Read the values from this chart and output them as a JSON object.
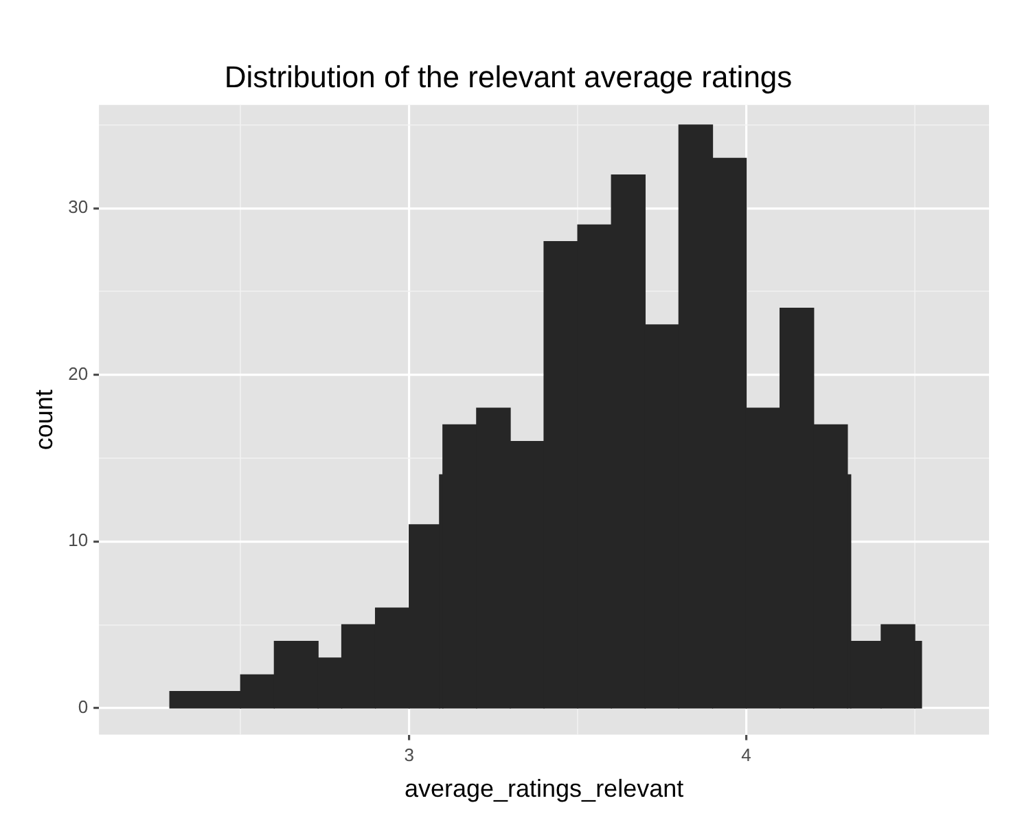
{
  "chart_data": {
    "type": "histogram",
    "title": "Distribution of the relevant average ratings",
    "xlabel": "average_ratings_relevant",
    "ylabel": "count",
    "bins": [
      2.29,
      2.5,
      2.6,
      2.73,
      2.8,
      2.9,
      3.0,
      3.09,
      3.1,
      3.2,
      3.3,
      3.4,
      3.5,
      3.6,
      3.7,
      3.8,
      3.9,
      4.0,
      4.1,
      4.2,
      4.3,
      4.31,
      4.4,
      4.5,
      4.52
    ],
    "values": [
      1,
      2,
      4,
      3,
      5,
      6,
      11,
      14,
      17,
      18,
      16,
      28,
      29,
      32,
      23,
      35,
      33,
      18,
      24,
      17,
      14,
      4,
      5,
      4
    ],
    "color": "#262626",
    "xlim": [
      2.08,
      4.72
    ],
    "ylim": [
      -1.6,
      36.2
    ],
    "xticks": [
      {
        "value": 2.5,
        "label": null
      },
      3,
      {
        "value": 3.5,
        "label": null
      },
      4,
      {
        "value": 4.5,
        "label": null
      }
    ],
    "yticks": [
      0,
      {
        "value": 5,
        "label": null
      },
      10,
      {
        "value": 15,
        "label": null
      },
      20,
      {
        "value": 25,
        "label": null
      },
      30,
      {
        "value": 35,
        "label": null
      }
    ],
    "grid": true
  }
}
